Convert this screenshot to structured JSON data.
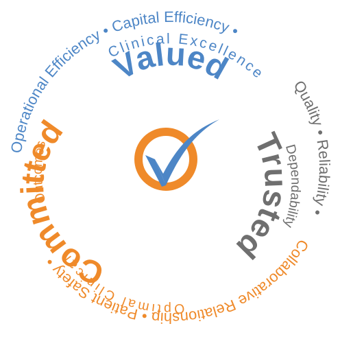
{
  "colors": {
    "blue": "#4d86c6",
    "orange": "#ef8a2a",
    "gray": "#6f6f6f",
    "background": "#ffffff"
  },
  "outer_ring": {
    "blue_phrase": "Operational Efficiency • Capital Efficiency •",
    "gray_phrase": "Quality • Reliability •",
    "orange_phrase": "Collaborative Relationship • Patient Safety •"
  },
  "inner_ring": {
    "blue_phrase": "Clinical Excellence",
    "gray_phrase": "Dependability",
    "orange_bottom_phrase": "Optimal Clinical",
    "orange_left_phrase": "Outcomes"
  },
  "center": {
    "valued": "Valued",
    "trusted": "Trusted",
    "committed": "Committed",
    "icon": "checkmark-in-circle-icon"
  }
}
